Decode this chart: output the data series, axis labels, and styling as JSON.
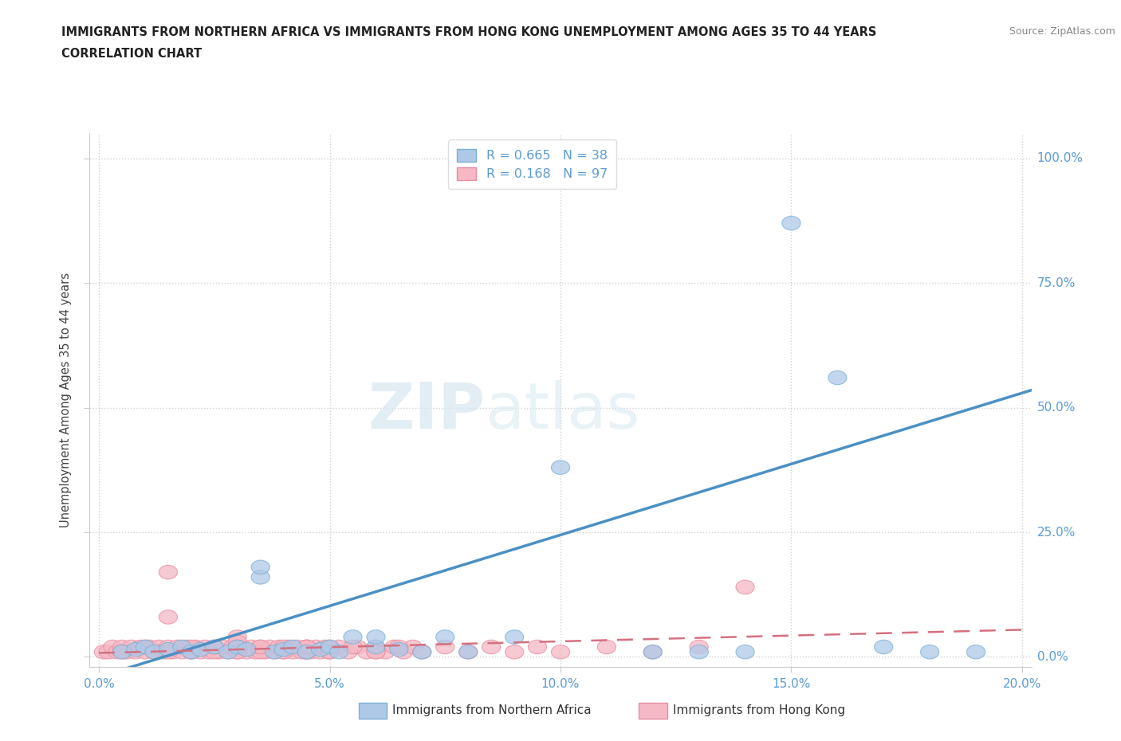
{
  "title_line1": "IMMIGRANTS FROM NORTHERN AFRICA VS IMMIGRANTS FROM HONG KONG UNEMPLOYMENT AMONG AGES 35 TO 44 YEARS",
  "title_line2": "CORRELATION CHART",
  "source": "Source: ZipAtlas.com",
  "xlabel_ticks": [
    "0.0%",
    "5.0%",
    "10.0%",
    "15.0%",
    "20.0%"
  ],
  "xlabel_vals": [
    0.0,
    0.05,
    0.1,
    0.15,
    0.2
  ],
  "ylabel": "Unemployment Among Ages 35 to 44 years",
  "ylabel_ticks": [
    "0.0%",
    "25.0%",
    "50.0%",
    "75.0%",
    "100.0%"
  ],
  "ylabel_vals": [
    0.0,
    0.25,
    0.5,
    0.75,
    1.0
  ],
  "xlim": [
    -0.002,
    0.202
  ],
  "ylim": [
    -0.02,
    1.05
  ],
  "R_blue": 0.665,
  "N_blue": 38,
  "R_pink": 0.168,
  "N_pink": 97,
  "legend_label_blue": "Immigrants from Northern Africa",
  "legend_label_pink": "Immigrants from Hong Kong",
  "color_blue_fill": "#aec9e8",
  "color_blue_edge": "#7bafd4",
  "color_blue_line": "#4a90c4",
  "color_pink_fill": "#f5b8c4",
  "color_pink_edge": "#e88ca0",
  "color_pink_line": "#d47080",
  "watermark_zip": "ZIP",
  "watermark_atlas": "atlas",
  "bg_color": "#ffffff",
  "grid_color": "#d0d0d0",
  "blue_line_x0": 0.0,
  "blue_line_y0": -0.04,
  "blue_line_x1": 0.202,
  "blue_line_y1": 0.535,
  "pink_line_x0": 0.0,
  "pink_line_y0": 0.008,
  "pink_line_x1": 0.202,
  "pink_line_y1": 0.055,
  "blue_scatter_x": [
    0.005,
    0.008,
    0.01,
    0.012,
    0.015,
    0.018,
    0.02,
    0.022,
    0.025,
    0.028,
    0.03,
    0.032,
    0.035,
    0.038,
    0.04,
    0.042,
    0.045,
    0.048,
    0.05,
    0.052,
    0.055,
    0.06,
    0.065,
    0.07,
    0.075,
    0.08,
    0.035,
    0.06,
    0.1,
    0.12,
    0.14,
    0.15,
    0.16,
    0.17,
    0.18,
    0.19,
    0.13,
    0.09
  ],
  "blue_scatter_y": [
    0.01,
    0.015,
    0.02,
    0.01,
    0.015,
    0.02,
    0.01,
    0.015,
    0.02,
    0.01,
    0.02,
    0.015,
    0.16,
    0.01,
    0.015,
    0.02,
    0.01,
    0.015,
    0.02,
    0.01,
    0.04,
    0.02,
    0.015,
    0.01,
    0.04,
    0.01,
    0.18,
    0.04,
    0.38,
    0.01,
    0.01,
    0.87,
    0.56,
    0.02,
    0.01,
    0.01,
    0.01,
    0.04
  ],
  "pink_scatter_x": [
    0.001,
    0.002,
    0.003,
    0.004,
    0.005,
    0.006,
    0.007,
    0.008,
    0.009,
    0.01,
    0.011,
    0.012,
    0.013,
    0.014,
    0.015,
    0.016,
    0.017,
    0.018,
    0.019,
    0.02,
    0.021,
    0.022,
    0.023,
    0.024,
    0.025,
    0.026,
    0.027,
    0.028,
    0.029,
    0.03,
    0.031,
    0.032,
    0.033,
    0.034,
    0.035,
    0.036,
    0.037,
    0.038,
    0.039,
    0.04,
    0.041,
    0.042,
    0.043,
    0.044,
    0.045,
    0.046,
    0.047,
    0.048,
    0.049,
    0.05,
    0.052,
    0.054,
    0.056,
    0.058,
    0.06,
    0.062,
    0.064,
    0.066,
    0.068,
    0.07,
    0.075,
    0.08,
    0.085,
    0.09,
    0.095,
    0.1,
    0.11,
    0.12,
    0.13,
    0.14,
    0.015,
    0.03,
    0.045,
    0.06,
    0.015,
    0.03,
    0.045,
    0.005,
    0.01,
    0.015,
    0.02,
    0.025,
    0.03,
    0.035,
    0.04,
    0.045,
    0.05,
    0.02,
    0.025,
    0.03,
    0.035,
    0.04,
    0.045,
    0.05,
    0.055,
    0.06,
    0.065
  ],
  "pink_scatter_y": [
    0.01,
    0.01,
    0.02,
    0.01,
    0.02,
    0.01,
    0.02,
    0.01,
    0.02,
    0.01,
    0.02,
    0.01,
    0.02,
    0.01,
    0.02,
    0.01,
    0.02,
    0.01,
    0.02,
    0.01,
    0.02,
    0.01,
    0.02,
    0.01,
    0.02,
    0.01,
    0.02,
    0.01,
    0.02,
    0.01,
    0.02,
    0.01,
    0.02,
    0.01,
    0.02,
    0.01,
    0.02,
    0.01,
    0.02,
    0.01,
    0.02,
    0.01,
    0.02,
    0.01,
    0.02,
    0.01,
    0.02,
    0.01,
    0.02,
    0.01,
    0.02,
    0.01,
    0.02,
    0.01,
    0.02,
    0.01,
    0.02,
    0.01,
    0.02,
    0.01,
    0.02,
    0.01,
    0.02,
    0.01,
    0.02,
    0.01,
    0.02,
    0.01,
    0.02,
    0.14,
    0.17,
    0.04,
    0.01,
    0.01,
    0.08,
    0.03,
    0.02,
    0.01,
    0.02,
    0.01,
    0.02,
    0.01,
    0.02,
    0.01,
    0.02,
    0.01,
    0.02,
    0.01,
    0.02,
    0.01,
    0.02,
    0.01,
    0.02,
    0.01,
    0.02,
    0.01,
    0.02
  ]
}
